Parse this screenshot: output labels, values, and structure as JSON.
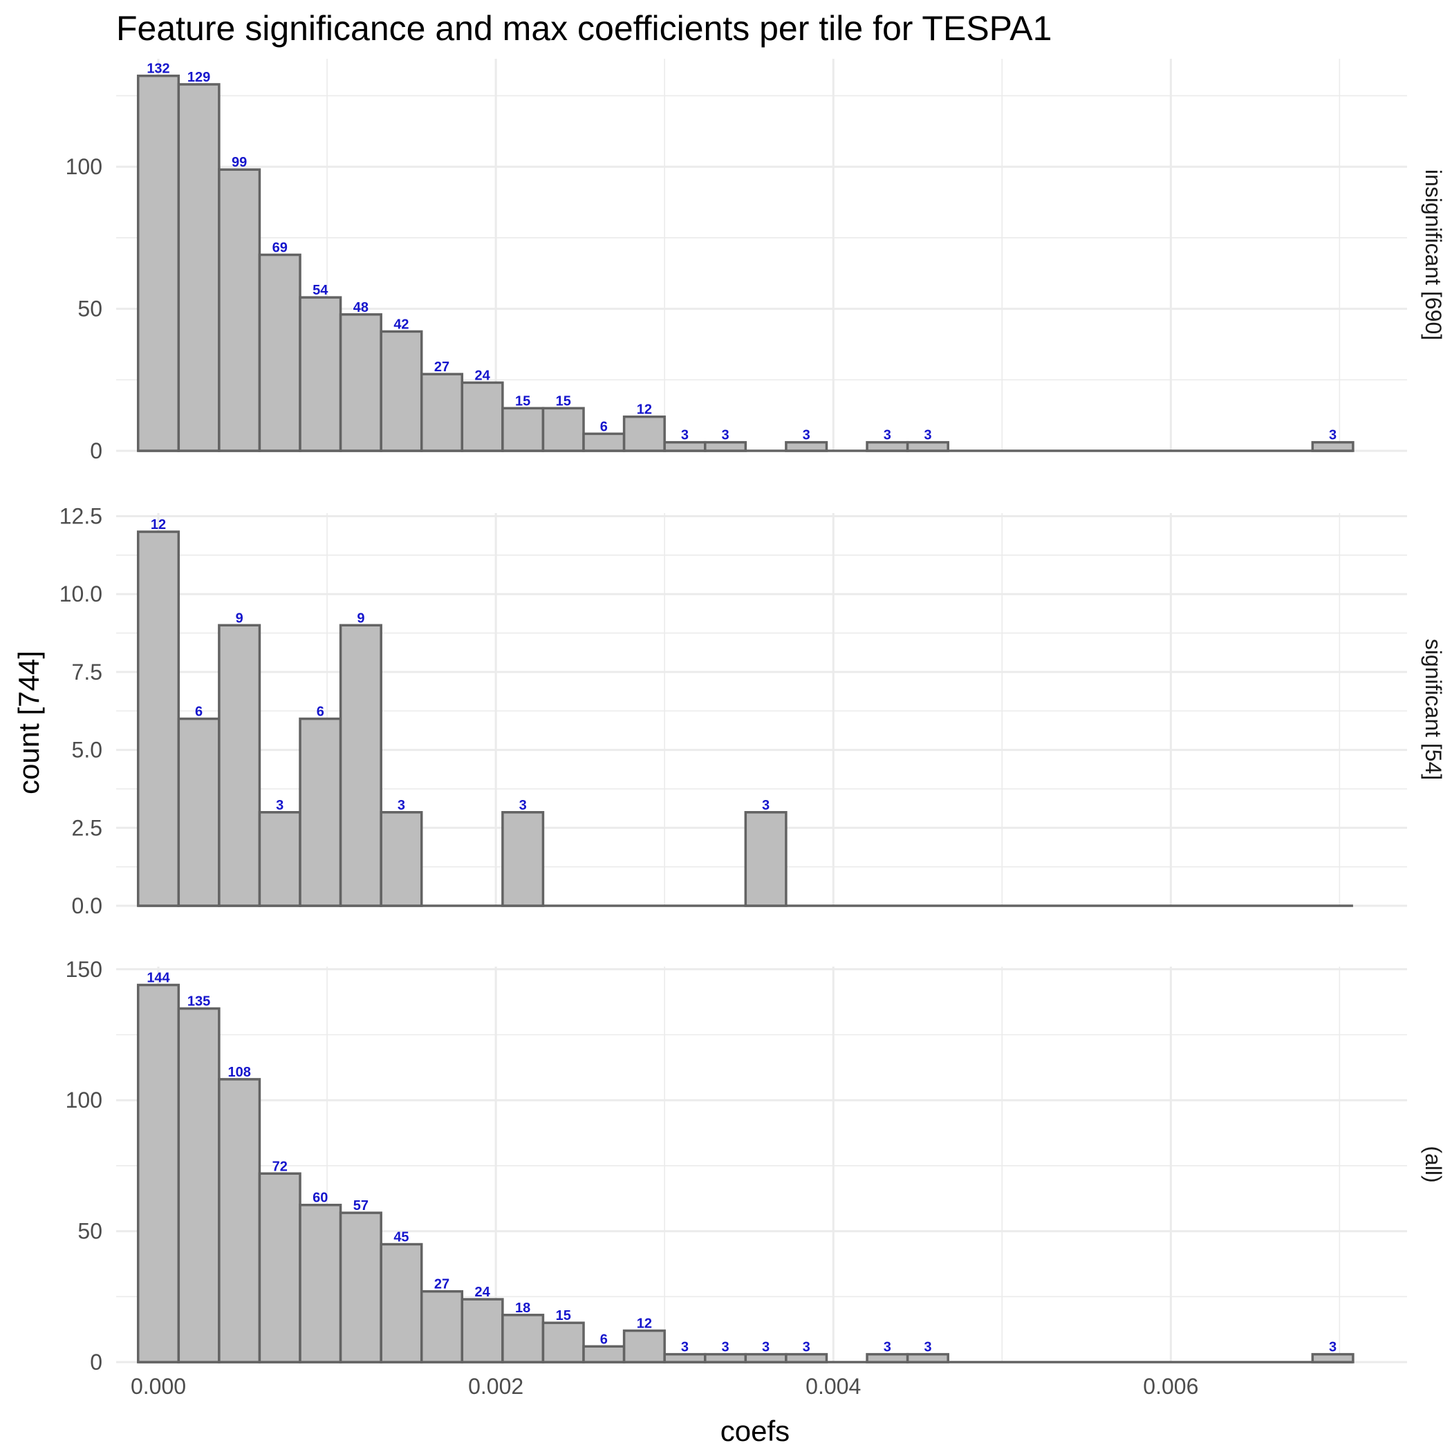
{
  "chart_data": {
    "type": "bar",
    "title": "Feature significance and max coefficients per tile for TESPA1",
    "xlabel": "coefs",
    "ylabel": "count [744]",
    "xlim": [
      -0.00025,
      0.0074
    ],
    "xticks": [
      0,
      0.002,
      0.004,
      0.006
    ],
    "xtick_labels": [
      "0.000",
      "0.002",
      "0.004",
      "0.006"
    ],
    "bin_width": 0.00024,
    "bin_start": -0.00012,
    "num_bins": 30,
    "grid": true,
    "facets": [
      {
        "label": "insignificant [690]",
        "ylim": [
          0,
          138
        ],
        "yticks": [
          0,
          50,
          100
        ],
        "ytick_labels": [
          "0",
          "50",
          "100"
        ],
        "yminor": [
          25,
          75,
          125
        ],
        "values": [
          132,
          129,
          99,
          69,
          54,
          48,
          42,
          27,
          24,
          15,
          15,
          6,
          12,
          3,
          3,
          0,
          3,
          0,
          3,
          3,
          0,
          0,
          0,
          0,
          0,
          0,
          0,
          0,
          0,
          3
        ]
      },
      {
        "label": "significant [54]",
        "ylim": [
          0,
          12.6
        ],
        "yticks": [
          0,
          2.5,
          5,
          7.5,
          10,
          12.5
        ],
        "ytick_labels": [
          "0.0",
          "2.5",
          "5.0",
          "7.5",
          "10.0",
          "12.5"
        ],
        "yminor": [
          1.25,
          3.75,
          6.25,
          8.75,
          11.25
        ],
        "values": [
          12,
          6,
          9,
          3,
          6,
          9,
          3,
          0,
          0,
          3,
          0,
          0,
          0,
          0,
          0,
          3,
          0,
          0,
          0,
          0,
          0,
          0,
          0,
          0,
          0,
          0,
          0,
          0,
          0,
          0
        ]
      },
      {
        "label": "(all)",
        "ylim": [
          0,
          151
        ],
        "yticks": [
          0,
          50,
          100,
          150
        ],
        "ytick_labels": [
          "0",
          "50",
          "100",
          "150"
        ],
        "yminor": [
          25,
          75,
          125
        ],
        "values": [
          144,
          135,
          108,
          72,
          60,
          57,
          45,
          27,
          24,
          18,
          15,
          6,
          12,
          3,
          3,
          3,
          3,
          0,
          3,
          3,
          0,
          0,
          0,
          0,
          0,
          0,
          0,
          0,
          0,
          3
        ]
      }
    ]
  }
}
